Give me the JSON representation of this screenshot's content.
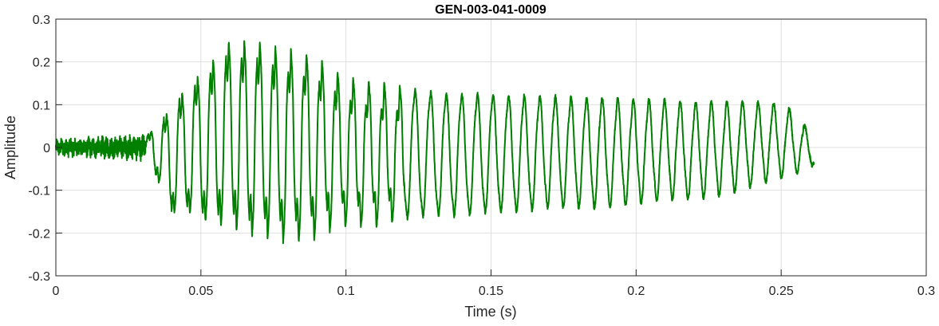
{
  "chart_data": {
    "type": "line",
    "title": "GEN-003-041-0009",
    "xlabel": "Time (s)",
    "ylabel": "Amplitude",
    "xlim": [
      0,
      0.3
    ],
    "ylim": [
      -0.3,
      0.3
    ],
    "xticks": [
      0,
      0.05,
      0.1,
      0.15,
      0.2,
      0.25,
      0.3
    ],
    "xtick_labels": [
      "0",
      "0.05",
      "0.1",
      "0.15",
      "0.2",
      "0.25",
      "0.3"
    ],
    "yticks": [
      -0.3,
      -0.2,
      -0.1,
      0,
      0.1,
      0.2,
      0.3
    ],
    "ytick_labels": [
      "-0.3",
      "-0.2",
      "-0.1",
      "0",
      "0.1",
      "0.2",
      "0.3"
    ],
    "grid": true,
    "line_color": "#007f00",
    "series": [
      {
        "signal_start": 0.0,
        "signal_end": 0.2613,
        "description": "Noisy near-zero segment until ~0.031 s, then an oscillation of ~186 Hz whose upper and lower envelopes are given below",
        "envelope_time": [
          0.0,
          0.031,
          0.035,
          0.04,
          0.045,
          0.05,
          0.055,
          0.06,
          0.065,
          0.07,
          0.075,
          0.08,
          0.085,
          0.09,
          0.095,
          0.1,
          0.105,
          0.11,
          0.115,
          0.12,
          0.13,
          0.14,
          0.15,
          0.16,
          0.17,
          0.18,
          0.19,
          0.2,
          0.21,
          0.22,
          0.23,
          0.24,
          0.25,
          0.255,
          0.2613
        ],
        "envelope_upper": [
          0.02,
          0.03,
          0.06,
          0.11,
          0.16,
          0.19,
          0.23,
          0.27,
          0.265,
          0.26,
          0.25,
          0.24,
          0.235,
          0.22,
          0.19,
          0.17,
          0.16,
          0.155,
          0.15,
          0.14,
          0.13,
          0.125,
          0.125,
          0.12,
          0.12,
          0.115,
          0.115,
          0.11,
          0.11,
          0.105,
          0.105,
          0.105,
          0.1,
          0.08,
          0.02
        ],
        "envelope_lower": [
          -0.02,
          -0.03,
          -0.08,
          -0.17,
          -0.17,
          -0.19,
          -0.2,
          -0.205,
          -0.22,
          -0.225,
          -0.23,
          -0.235,
          -0.23,
          -0.22,
          -0.2,
          -0.19,
          -0.19,
          -0.19,
          -0.18,
          -0.17,
          -0.16,
          -0.16,
          -0.15,
          -0.15,
          -0.14,
          -0.14,
          -0.14,
          -0.13,
          -0.12,
          -0.12,
          -0.11,
          -0.09,
          -0.07,
          -0.06,
          -0.04
        ]
      }
    ]
  }
}
